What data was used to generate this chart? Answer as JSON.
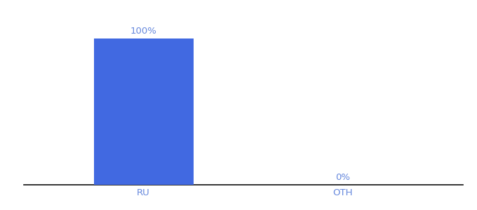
{
  "categories": [
    "RU",
    "OTH"
  ],
  "values": [
    100,
    0
  ],
  "bar_color": "#4169E1",
  "label_color": "#6688DD",
  "xlabel_color": "#6688DD",
  "background_color": "#ffffff",
  "bar_labels": [
    "100%",
    "0%"
  ],
  "ylim": [
    0,
    115
  ],
  "bar_width": 0.5,
  "label_fontsize": 9.5,
  "tick_fontsize": 9.5,
  "xlim": [
    -0.6,
    1.6
  ]
}
